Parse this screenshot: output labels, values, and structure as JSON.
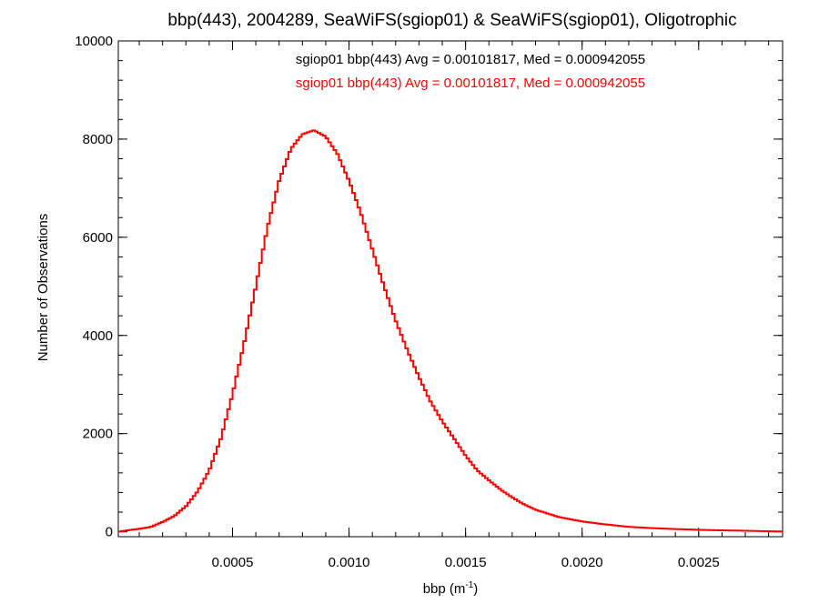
{
  "chart_data": {
    "type": "histogram",
    "title": "bbp(443), 2004289, SeaWiFS(sgiop01) & SeaWiFS(sgiop01), Oligotrophic",
    "xlabel_main": "bbp (m",
    "xlabel_sup": "-1",
    "xlabel_close": ")",
    "ylabel": "Number of Observations",
    "xlim": [
      1e-05,
      0.00286
    ],
    "ylim": [
      -100,
      10000
    ],
    "x_ticks": [
      0.0005,
      0.001,
      0.0015,
      0.002,
      0.0025
    ],
    "x_tick_labels": [
      "0.0005",
      "0.0010",
      "0.0015",
      "0.0020",
      "0.0025"
    ],
    "y_ticks": [
      0,
      2000,
      4000,
      6000,
      8000,
      10000
    ],
    "y_tick_labels": [
      "0",
      "2000",
      "4000",
      "6000",
      "8000",
      "10000"
    ],
    "annotations": [
      {
        "text": "sgiop01 bbp(443) Avg = 0.00101817, Med = 0.000942055",
        "color": "#000000"
      },
      {
        "text": "sgiop01 bbp(443) Avg = 0.00101817, Med = 0.000942055",
        "color": "#ff0000"
      }
    ],
    "series": [
      {
        "name": "sgiop01 bbp(443)",
        "color": "#ff0000",
        "x": [
          1e-05,
          5e-05,
          0.0001,
          0.00015,
          0.0002,
          0.00025,
          0.0003,
          0.00035,
          0.0004,
          0.00045,
          0.0005,
          0.00055,
          0.0006,
          0.00065,
          0.0007,
          0.00075,
          0.0008,
          0.00085,
          0.0009,
          0.00095,
          0.001,
          0.00105,
          0.0011,
          0.00115,
          0.0012,
          0.00125,
          0.0013,
          0.00135,
          0.0014,
          0.00145,
          0.0015,
          0.00155,
          0.0016,
          0.00165,
          0.0017,
          0.00175,
          0.0018,
          0.0019,
          0.002,
          0.0021,
          0.0022,
          0.0023,
          0.0024,
          0.0025,
          0.0026,
          0.0027,
          0.0028,
          0.00286
        ],
        "y": [
          0,
          30,
          60,
          100,
          200,
          320,
          520,
          820,
          1250,
          1900,
          2800,
          3850,
          5000,
          6200,
          7150,
          7800,
          8100,
          8180,
          8050,
          7700,
          7150,
          6500,
          5750,
          5000,
          4300,
          3700,
          3150,
          2650,
          2250,
          1900,
          1550,
          1250,
          1050,
          860,
          700,
          560,
          450,
          300,
          210,
          150,
          100,
          75,
          55,
          40,
          30,
          20,
          10,
          5
        ]
      }
    ]
  }
}
